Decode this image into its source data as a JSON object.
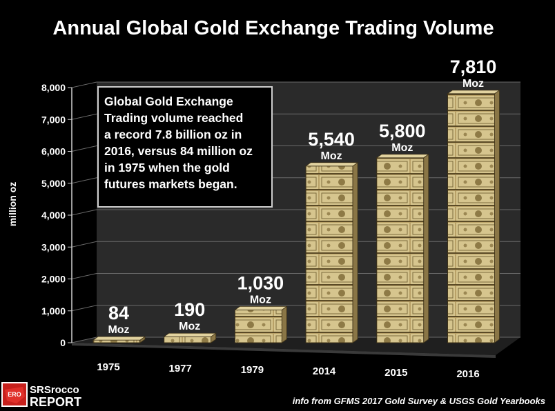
{
  "chart_data": {
    "type": "bar",
    "title": "Annual Global Gold Exchange Trading Volume",
    "ylabel": "million  oz",
    "xlabel": "",
    "ylim": [
      0,
      8000
    ],
    "yticks": [
      0,
      1000,
      2000,
      3000,
      4000,
      5000,
      6000,
      7000,
      8000
    ],
    "ytick_labels": [
      "0",
      "1,000",
      "2,000",
      "3,000",
      "4,000",
      "5,000",
      "6,000",
      "7,000",
      "8,000"
    ],
    "categories": [
      "1975",
      "1977",
      "1979",
      "2014",
      "2015",
      "2016"
    ],
    "values": [
      84,
      190,
      1030,
      5540,
      5800,
      7810
    ],
    "data_labels": [
      {
        "value": "84",
        "unit": "Moz"
      },
      {
        "value": "190",
        "unit": "Moz"
      },
      {
        "value": "1,030",
        "unit": "Moz"
      },
      {
        "value": "5,540",
        "unit": "Moz"
      },
      {
        "value": "5,800",
        "unit": "Moz"
      },
      {
        "value": "7,810",
        "unit": "Moz"
      }
    ],
    "annotation": [
      "Global Gold Exchange",
      "Trading volume reached",
      "a record 7.8 billion oz in",
      "2016, versus 84 million oz",
      "in 1975 when the gold",
      "futures markets began."
    ],
    "source": "info from GFMS 2017 Gold Survey & USGS Gold Yearbooks",
    "grid": true,
    "legend": "none"
  },
  "logo": {
    "line1": "SRSrocco",
    "line2": "REPORT",
    "badge": "ERO"
  },
  "colors": {
    "background": "#000000",
    "bar": "#c9b37a",
    "text": "#ffffff",
    "grid": "#6a6a6a"
  }
}
